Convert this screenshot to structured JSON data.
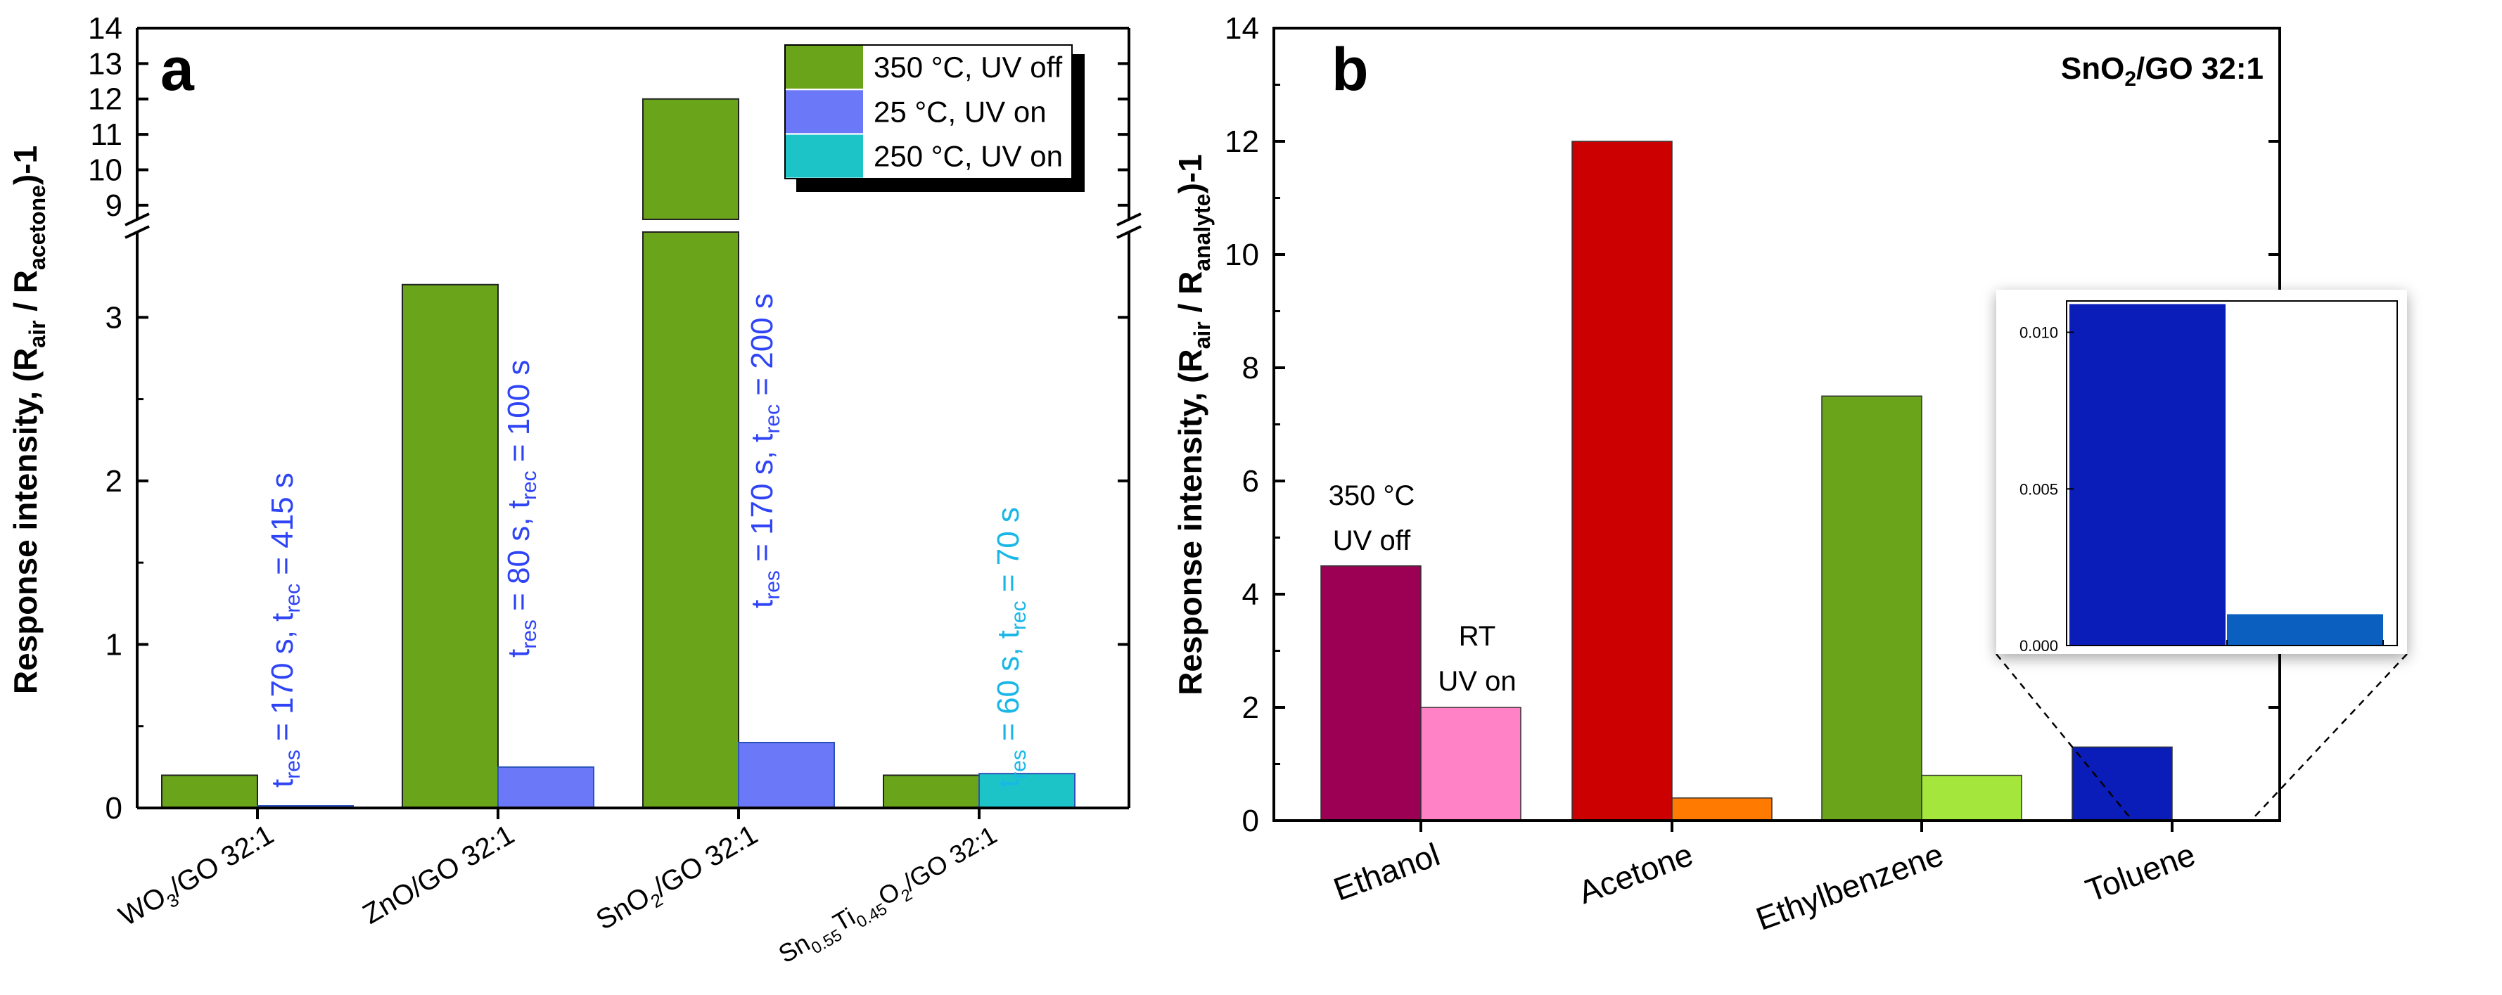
{
  "colors": {
    "green": "#6aa41a",
    "blue": "#6b78f8",
    "cyan": "#1cc4c8",
    "ethanol_a": "#9b0055",
    "ethanol_b": "#ff82c6",
    "acetone_a": "#cc0000",
    "acetone_b": "#ff7a00",
    "ethylbenzene_a": "#6aa41a",
    "ethylbenzene_b": "#a5e63c",
    "toluene_a": "#0a1db8",
    "toluene_b": "#0a5fbf",
    "annot_blue": "#2f44f5",
    "annot_cyan": "#19b7e6"
  },
  "chart_data": [
    {
      "panel": "a",
      "type": "bar",
      "ylabel": {
        "pre": "Response intensity, (R",
        "sub1": "air",
        "mid": " / R",
        "sub2": "acetone",
        "post": ")-1"
      },
      "y_axis_break": {
        "lower": [
          0,
          3.5
        ],
        "upper": [
          8.6,
          14
        ]
      },
      "yticks_lower": [
        0,
        1,
        2,
        3
      ],
      "yticks_upper": [
        9,
        10,
        11,
        12,
        13,
        14
      ],
      "categories": [
        {
          "label": "WO3/GO 32:1",
          "parts": [
            [
              "WO",
              ""
            ],
            [
              "3",
              "sub"
            ],
            [
              "/GO 32:1",
              ""
            ]
          ]
        },
        {
          "label": "ZnO/GO 32:1",
          "parts": [
            [
              "ZnO/GO 32:1",
              ""
            ]
          ]
        },
        {
          "label": "SnO2/GO 32:1",
          "parts": [
            [
              "SnO",
              ""
            ],
            [
              "2",
              "sub"
            ],
            [
              "/GO 32:1",
              ""
            ]
          ]
        },
        {
          "label": "Sn0.55Ti0.45O2/GO 32:1",
          "parts": [
            [
              "Sn",
              ""
            ],
            [
              "0.55",
              "sub"
            ],
            [
              "Ti",
              ""
            ],
            [
              "0.45",
              "sub"
            ],
            [
              "O",
              ""
            ],
            [
              "2",
              "sub"
            ],
            [
              "/GO 32:1",
              ""
            ]
          ]
        }
      ],
      "series": [
        {
          "name": "350 °C, UV off",
          "values": [
            0.2,
            3.2,
            12.0,
            0.2
          ]
        },
        {
          "name": "25 °C, UV on",
          "values": [
            0.01,
            0.25,
            0.4,
            null
          ]
        },
        {
          "name": "250 °C, UV on",
          "values": [
            null,
            null,
            null,
            0.21
          ]
        }
      ],
      "legend": [
        "350 °C, UV off",
        "25 °C, UV on",
        "250 °C, UV on"
      ],
      "legend_position": "top-right",
      "annotations": [
        {
          "label": "t_res = 170 s, t_rec = 415 s",
          "a": "t",
          "b": "res",
          "c": " = 170 s, t",
          "d": "rec",
          "e": " = 415 s"
        },
        {
          "label": "t_res = 80 s, t_rec = 100 s",
          "a": "t",
          "b": "res",
          "c": " = 80 s, t",
          "d": "rec",
          "e": " = 100 s"
        },
        {
          "label": "t_res = 170 s, t_rec = 200 s",
          "a": "t",
          "b": "res",
          "c": " = 170 s, t",
          "d": "rec",
          "e": " = 200 s"
        },
        {
          "label": "t_res = 60 s, t_rec = 70 s",
          "a": "t",
          "b": "res",
          "c": " = 60 s, t",
          "d": "rec",
          "e": " = 70 s"
        }
      ]
    },
    {
      "panel": "b",
      "type": "bar",
      "title": {
        "pre": "SnO",
        "sub": "2",
        "post": "/GO 32:1"
      },
      "ylabel": {
        "pre": "Response intensity, (R",
        "sub1": "air",
        "mid": " / R",
        "sub2": "analyte",
        "post": ")-1"
      },
      "ylim": [
        0,
        14
      ],
      "yticks": [
        0,
        2,
        4,
        6,
        8,
        10,
        12,
        14
      ],
      "categories": [
        "Ethanol",
        "Acetone",
        "Ethylbenzene",
        "Toluene"
      ],
      "series": [
        {
          "name": "350 °C UV off",
          "values": [
            4.5,
            12.0,
            7.5,
            1.3
          ]
        },
        {
          "name": "RT UV on",
          "values": [
            2.0,
            0.4,
            0.8,
            0.001
          ]
        }
      ],
      "annotations": {
        "series1": [
          "350 °C",
          "UV off"
        ],
        "series2": [
          "RT",
          "UV on"
        ]
      },
      "inset": {
        "ylim": [
          0,
          0.011
        ],
        "yticks": [
          "0.000",
          "0.005",
          "0.010"
        ],
        "values": [
          0.0109,
          0.001
        ],
        "category": "Toluene"
      }
    }
  ]
}
